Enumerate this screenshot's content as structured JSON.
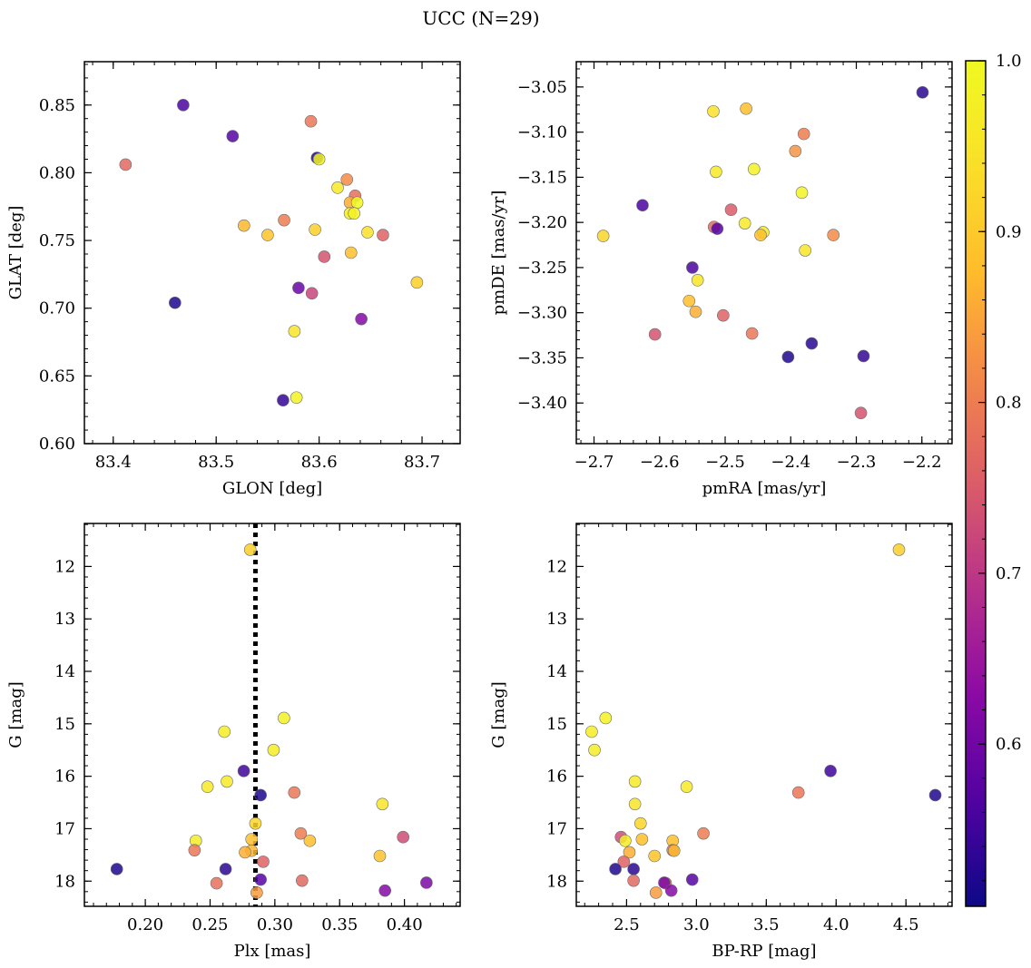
{
  "figure": {
    "title": "UCC (N=29)",
    "colorbar": {
      "min": 0.505,
      "max": 1.0,
      "ticks": [
        0.6,
        0.7,
        0.8,
        0.9,
        1.0
      ],
      "tick_labels": [
        "0.6",
        "0.7",
        "0.8",
        "0.9",
        "1.0"
      ],
      "colormap": "plasma"
    }
  },
  "chart_data": [
    {
      "type": "scatter",
      "name": "glon-glat",
      "xlabel": "GLON [deg]",
      "ylabel": "GLAT [deg]",
      "xlim": [
        83.372,
        83.737
      ],
      "ylim": [
        0.6,
        0.882
      ],
      "x_ticks": [
        83.4,
        83.5,
        83.6,
        83.7
      ],
      "x_tick_labels": [
        "83.4",
        "83.5",
        "83.6",
        "83.7"
      ],
      "y_ticks": [
        0.6,
        0.65,
        0.7,
        0.75,
        0.8,
        0.85
      ],
      "y_tick_labels": [
        "0.60",
        "0.65",
        "0.70",
        "0.75",
        "0.80",
        "0.85"
      ],
      "y_inverted": false,
      "points": [
        {
          "x": 83.468,
          "y": 0.85,
          "c": 0.56
        },
        {
          "x": 83.592,
          "y": 0.838,
          "c": 0.79
        },
        {
          "x": 83.516,
          "y": 0.827,
          "c": 0.57
        },
        {
          "x": 83.412,
          "y": 0.806,
          "c": 0.77
        },
        {
          "x": 83.598,
          "y": 0.811,
          "c": 0.52
        },
        {
          "x": 83.6,
          "y": 0.81,
          "c": 0.98
        },
        {
          "x": 83.627,
          "y": 0.795,
          "c": 0.82
        },
        {
          "x": 83.618,
          "y": 0.789,
          "c": 0.96
        },
        {
          "x": 83.635,
          "y": 0.783,
          "c": 0.78
        },
        {
          "x": 83.63,
          "y": 0.778,
          "c": 0.86
        },
        {
          "x": 83.637,
          "y": 0.778,
          "c": 1.0
        },
        {
          "x": 83.63,
          "y": 0.77,
          "c": 0.97
        },
        {
          "x": 83.634,
          "y": 0.77,
          "c": 0.98
        },
        {
          "x": 83.566,
          "y": 0.765,
          "c": 0.8
        },
        {
          "x": 83.527,
          "y": 0.761,
          "c": 0.87
        },
        {
          "x": 83.596,
          "y": 0.758,
          "c": 0.91
        },
        {
          "x": 83.647,
          "y": 0.756,
          "c": 0.94
        },
        {
          "x": 83.55,
          "y": 0.754,
          "c": 0.89
        },
        {
          "x": 83.662,
          "y": 0.754,
          "c": 0.76
        },
        {
          "x": 83.605,
          "y": 0.738,
          "c": 0.74
        },
        {
          "x": 83.631,
          "y": 0.741,
          "c": 0.88
        },
        {
          "x": 83.695,
          "y": 0.719,
          "c": 0.91
        },
        {
          "x": 83.58,
          "y": 0.715,
          "c": 0.59
        },
        {
          "x": 83.593,
          "y": 0.711,
          "c": 0.72
        },
        {
          "x": 83.46,
          "y": 0.704,
          "c": 0.52
        },
        {
          "x": 83.641,
          "y": 0.692,
          "c": 0.62
        },
        {
          "x": 83.576,
          "y": 0.683,
          "c": 0.95
        },
        {
          "x": 83.578,
          "y": 0.634,
          "c": 0.98
        },
        {
          "x": 83.565,
          "y": 0.632,
          "c": 0.54
        }
      ]
    },
    {
      "type": "scatter",
      "name": "pmra-pmde",
      "xlabel": "pmRA [mas/yr]",
      "ylabel": "pmDE [mas/yr]",
      "xlim": [
        -2.727,
        -2.154
      ],
      "ylim": [
        -3.445,
        -3.022
      ],
      "x_ticks": [
        -2.7,
        -2.6,
        -2.5,
        -2.4,
        -2.3,
        -2.2
      ],
      "x_tick_labels": [
        "−2.7",
        "−2.6",
        "−2.5",
        "−2.4",
        "−2.3",
        "−2.2"
      ],
      "y_ticks": [
        -3.4,
        -3.35,
        -3.3,
        -3.25,
        -3.2,
        -3.15,
        -3.1,
        -3.05
      ],
      "y_tick_labels": [
        "−3.40",
        "−3.35",
        "−3.30",
        "−3.25",
        "−3.20",
        "−3.15",
        "−3.10",
        "−3.05"
      ],
      "y_inverted": false,
      "points": [
        {
          "x": -2.199,
          "y": -3.056,
          "c": 0.53
        },
        {
          "x": -2.468,
          "y": -3.074,
          "c": 0.88
        },
        {
          "x": -2.518,
          "y": -3.077,
          "c": 0.94
        },
        {
          "x": -2.38,
          "y": -3.102,
          "c": 0.8
        },
        {
          "x": -2.393,
          "y": -3.121,
          "c": 0.83
        },
        {
          "x": -2.456,
          "y": -3.141,
          "c": 0.98
        },
        {
          "x": -2.514,
          "y": -3.144,
          "c": 0.96
        },
        {
          "x": -2.383,
          "y": -3.167,
          "c": 0.99
        },
        {
          "x": -2.626,
          "y": -3.181,
          "c": 0.56
        },
        {
          "x": -2.491,
          "y": -3.186,
          "c": 0.75
        },
        {
          "x": -2.47,
          "y": -3.201,
          "c": 0.96
        },
        {
          "x": -2.517,
          "y": -3.205,
          "c": 0.77
        },
        {
          "x": -2.512,
          "y": -3.207,
          "c": 0.57
        },
        {
          "x": -2.442,
          "y": -3.211,
          "c": 0.97
        },
        {
          "x": -2.446,
          "y": -3.214,
          "c": 0.88
        },
        {
          "x": -2.335,
          "y": -3.214,
          "c": 0.82
        },
        {
          "x": -2.686,
          "y": -3.215,
          "c": 0.92
        },
        {
          "x": -2.378,
          "y": -3.231,
          "c": 0.95
        },
        {
          "x": -2.55,
          "y": -3.25,
          "c": 0.56
        },
        {
          "x": -2.542,
          "y": -3.264,
          "c": 0.95
        },
        {
          "x": -2.555,
          "y": -3.287,
          "c": 0.88
        },
        {
          "x": -2.545,
          "y": -3.299,
          "c": 0.86
        },
        {
          "x": -2.503,
          "y": -3.303,
          "c": 0.76
        },
        {
          "x": -2.607,
          "y": -3.324,
          "c": 0.74
        },
        {
          "x": -2.459,
          "y": -3.323,
          "c": 0.79
        },
        {
          "x": -2.368,
          "y": -3.334,
          "c": 0.53
        },
        {
          "x": -2.404,
          "y": -3.349,
          "c": 0.52
        },
        {
          "x": -2.289,
          "y": -3.348,
          "c": 0.54
        },
        {
          "x": -2.293,
          "y": -3.411,
          "c": 0.74
        }
      ]
    },
    {
      "type": "scatter",
      "name": "plx-g",
      "xlabel": "Plx [mas]",
      "ylabel": "G [mag]",
      "xlim": [
        0.153,
        0.443
      ],
      "ylim": [
        18.48,
        11.18
      ],
      "x_ticks": [
        0.2,
        0.25,
        0.3,
        0.35,
        0.4
      ],
      "x_tick_labels": [
        "0.20",
        "0.25",
        "0.30",
        "0.35",
        "0.40"
      ],
      "y_ticks": [
        12,
        13,
        14,
        15,
        16,
        17,
        18
      ],
      "y_tick_labels": [
        "12",
        "13",
        "14",
        "15",
        "16",
        "17",
        "18"
      ],
      "y_inverted": true,
      "reference_line": {
        "x": 0.285,
        "style": "dotted",
        "color": "#000000"
      },
      "points": [
        {
          "x": 0.281,
          "y": 11.68,
          "c": 0.91
        },
        {
          "x": 0.307,
          "y": 14.89,
          "c": 0.98
        },
        {
          "x": 0.261,
          "y": 15.15,
          "c": 0.97
        },
        {
          "x": 0.299,
          "y": 15.5,
          "c": 0.97
        },
        {
          "x": 0.276,
          "y": 15.9,
          "c": 0.55
        },
        {
          "x": 0.263,
          "y": 16.1,
          "c": 0.96
        },
        {
          "x": 0.248,
          "y": 16.2,
          "c": 0.96
        },
        {
          "x": 0.315,
          "y": 16.31,
          "c": 0.79
        },
        {
          "x": 0.289,
          "y": 16.36,
          "c": 0.52
        },
        {
          "x": 0.383,
          "y": 16.53,
          "c": 0.95
        },
        {
          "x": 0.285,
          "y": 16.9,
          "c": 0.92
        },
        {
          "x": 0.32,
          "y": 17.09,
          "c": 0.8
        },
        {
          "x": 0.399,
          "y": 17.16,
          "c": 0.73
        },
        {
          "x": 0.282,
          "y": 17.2,
          "c": 0.88
        },
        {
          "x": 0.239,
          "y": 17.23,
          "c": 0.97
        },
        {
          "x": 0.327,
          "y": 17.23,
          "c": 0.88
        },
        {
          "x": 0.238,
          "y": 17.41,
          "c": 0.79
        },
        {
          "x": 0.282,
          "y": 17.42,
          "c": 0.87
        },
        {
          "x": 0.277,
          "y": 17.45,
          "c": 0.86
        },
        {
          "x": 0.381,
          "y": 17.52,
          "c": 0.89
        },
        {
          "x": 0.291,
          "y": 17.63,
          "c": 0.76
        },
        {
          "x": 0.178,
          "y": 17.77,
          "c": 0.52
        },
        {
          "x": 0.262,
          "y": 17.77,
          "c": 0.53
        },
        {
          "x": 0.289,
          "y": 17.97,
          "c": 0.57
        },
        {
          "x": 0.321,
          "y": 17.99,
          "c": 0.77
        },
        {
          "x": 0.255,
          "y": 18.04,
          "c": 0.78
        },
        {
          "x": 0.417,
          "y": 18.03,
          "c": 0.61
        },
        {
          "x": 0.385,
          "y": 18.18,
          "c": 0.62
        },
        {
          "x": 0.286,
          "y": 18.22,
          "c": 0.84
        }
      ]
    },
    {
      "type": "scatter",
      "name": "bprp-g",
      "xlabel": "BP-RP [mag]",
      "ylabel": "G [mag]",
      "xlim": [
        2.14,
        4.83
      ],
      "ylim": [
        18.48,
        11.18
      ],
      "x_ticks": [
        2.5,
        3.0,
        3.5,
        4.0,
        4.5
      ],
      "x_tick_labels": [
        "2.5",
        "3.0",
        "3.5",
        "4.0",
        "4.5"
      ],
      "y_ticks": [
        12,
        13,
        14,
        15,
        16,
        17,
        18
      ],
      "y_tick_labels": [
        "12",
        "13",
        "14",
        "15",
        "16",
        "17",
        "18"
      ],
      "y_inverted": true,
      "points": [
        {
          "x": 4.45,
          "y": 11.68,
          "c": 0.91
        },
        {
          "x": 2.35,
          "y": 14.89,
          "c": 0.98
        },
        {
          "x": 2.25,
          "y": 15.15,
          "c": 0.97
        },
        {
          "x": 2.27,
          "y": 15.5,
          "c": 0.97
        },
        {
          "x": 3.96,
          "y": 15.9,
          "c": 0.55
        },
        {
          "x": 2.56,
          "y": 16.1,
          "c": 0.96
        },
        {
          "x": 2.93,
          "y": 16.2,
          "c": 0.96
        },
        {
          "x": 3.73,
          "y": 16.31,
          "c": 0.79
        },
        {
          "x": 4.71,
          "y": 16.36,
          "c": 0.52
        },
        {
          "x": 2.56,
          "y": 16.53,
          "c": 0.95
        },
        {
          "x": 2.6,
          "y": 16.9,
          "c": 0.92
        },
        {
          "x": 3.05,
          "y": 17.09,
          "c": 0.8
        },
        {
          "x": 2.46,
          "y": 17.16,
          "c": 0.73
        },
        {
          "x": 2.61,
          "y": 17.2,
          "c": 0.88
        },
        {
          "x": 2.49,
          "y": 17.23,
          "c": 0.97
        },
        {
          "x": 2.83,
          "y": 17.23,
          "c": 0.88
        },
        {
          "x": 2.83,
          "y": 17.41,
          "c": 0.79
        },
        {
          "x": 2.84,
          "y": 17.42,
          "c": 0.87
        },
        {
          "x": 2.52,
          "y": 17.45,
          "c": 0.86
        },
        {
          "x": 2.7,
          "y": 17.52,
          "c": 0.89
        },
        {
          "x": 2.48,
          "y": 17.63,
          "c": 0.76
        },
        {
          "x": 2.42,
          "y": 17.77,
          "c": 0.52
        },
        {
          "x": 2.55,
          "y": 17.77,
          "c": 0.53
        },
        {
          "x": 2.97,
          "y": 17.97,
          "c": 0.57
        },
        {
          "x": 2.55,
          "y": 17.99,
          "c": 0.77
        },
        {
          "x": 2.78,
          "y": 18.04,
          "c": 0.78
        },
        {
          "x": 2.77,
          "y": 18.03,
          "c": 0.61
        },
        {
          "x": 2.82,
          "y": 18.18,
          "c": 0.62
        },
        {
          "x": 2.71,
          "y": 18.22,
          "c": 0.84
        }
      ]
    }
  ]
}
